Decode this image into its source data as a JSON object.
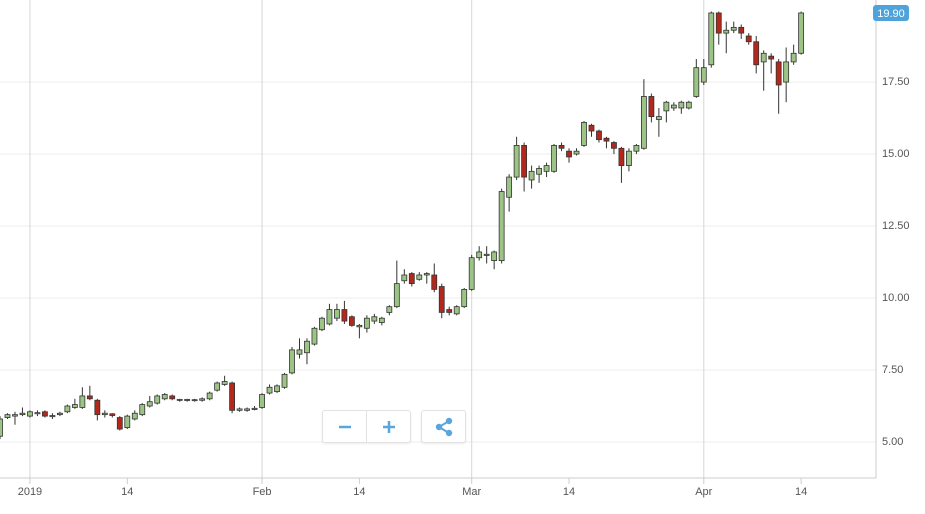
{
  "chart_data": {
    "type": "candlestick",
    "x": [
      "2018-12-28",
      "2018-12-29",
      "2018-12-30",
      "2018-12-31",
      "2019-01-01",
      "2019-01-02",
      "2019-01-03",
      "2019-01-04",
      "2019-01-05",
      "2019-01-06",
      "2019-01-07",
      "2019-01-08",
      "2019-01-09",
      "2019-01-10",
      "2019-01-11",
      "2019-01-12",
      "2019-01-13",
      "2019-01-14",
      "2019-01-15",
      "2019-01-16",
      "2019-01-17",
      "2019-01-18",
      "2019-01-19",
      "2019-01-20",
      "2019-01-21",
      "2019-01-22",
      "2019-01-23",
      "2019-01-24",
      "2019-01-25",
      "2019-01-26",
      "2019-01-27",
      "2019-01-28",
      "2019-01-29",
      "2019-01-30",
      "2019-01-31",
      "2019-02-01",
      "2019-02-02",
      "2019-02-03",
      "2019-02-04",
      "2019-02-05",
      "2019-02-06",
      "2019-02-07",
      "2019-02-08",
      "2019-02-09",
      "2019-02-10",
      "2019-02-11",
      "2019-02-12",
      "2019-02-13",
      "2019-02-14",
      "2019-02-15",
      "2019-02-16",
      "2019-02-17",
      "2019-02-18",
      "2019-02-19",
      "2019-02-20",
      "2019-02-21",
      "2019-02-22",
      "2019-02-23",
      "2019-02-24",
      "2019-02-25",
      "2019-02-26",
      "2019-02-27",
      "2019-02-28",
      "2019-03-01",
      "2019-03-02",
      "2019-03-03",
      "2019-03-04",
      "2019-03-05",
      "2019-03-06",
      "2019-03-07",
      "2019-03-08",
      "2019-03-09",
      "2019-03-10",
      "2019-03-11",
      "2019-03-12",
      "2019-03-13",
      "2019-03-14",
      "2019-03-15",
      "2019-03-16",
      "2019-03-17",
      "2019-03-18",
      "2019-03-19",
      "2019-03-20",
      "2019-03-21",
      "2019-03-22",
      "2019-03-23",
      "2019-03-24",
      "2019-03-25",
      "2019-03-26",
      "2019-03-27",
      "2019-03-28",
      "2019-03-29",
      "2019-03-30",
      "2019-03-31",
      "2019-04-01",
      "2019-04-02",
      "2019-04-03",
      "2019-04-04",
      "2019-04-05",
      "2019-04-06",
      "2019-04-07",
      "2019-04-08",
      "2019-04-09",
      "2019-04-10",
      "2019-04-11",
      "2019-04-12",
      "2019-04-13",
      "2019-04-14"
    ],
    "open": [
      5.2,
      5.85,
      5.9,
      5.95,
      5.9,
      5.98,
      6.05,
      5.88,
      5.95,
      6.05,
      6.2,
      6.2,
      6.6,
      6.45,
      5.95,
      5.98,
      5.85,
      5.5,
      5.8,
      5.95,
      6.25,
      6.35,
      6.5,
      6.6,
      6.45,
      6.44,
      6.44,
      6.45,
      6.5,
      6.8,
      7.0,
      7.05,
      6.1,
      6.1,
      6.13,
      6.2,
      6.7,
      6.75,
      6.9,
      7.4,
      8.05,
      8.1,
      8.4,
      8.9,
      9.1,
      9.3,
      9.6,
      9.35,
      9.0,
      8.95,
      9.2,
      9.15,
      9.5,
      9.7,
      10.6,
      10.85,
      10.65,
      10.8,
      10.8,
      10.4,
      9.6,
      9.45,
      9.7,
      10.3,
      11.4,
      11.48,
      11.3,
      11.3,
      13.5,
      14.2,
      15.3,
      14.1,
      14.3,
      14.4,
      14.4,
      15.3,
      15.1,
      15.0,
      15.3,
      16.0,
      15.8,
      15.55,
      15.4,
      15.2,
      14.6,
      15.1,
      15.2,
      17.0,
      16.2,
      16.5,
      16.6,
      16.6,
      16.6,
      17.0,
      17.5,
      18.1,
      19.9,
      19.2,
      19.3,
      19.4,
      19.1,
      18.9,
      18.2,
      18.4,
      18.2,
      17.5,
      18.2,
      18.5
    ],
    "high": [
      5.9,
      6.0,
      6.05,
      6.2,
      6.1,
      6.1,
      6.1,
      6.0,
      6.05,
      6.3,
      6.5,
      6.9,
      6.95,
      6.5,
      6.1,
      6.0,
      5.9,
      5.95,
      6.1,
      6.35,
      6.6,
      6.65,
      6.7,
      6.65,
      6.5,
      6.5,
      6.5,
      6.55,
      6.75,
      7.1,
      7.3,
      7.1,
      6.2,
      6.2,
      6.25,
      6.7,
      7.0,
      7.0,
      7.4,
      8.3,
      8.6,
      8.6,
      9.0,
      9.35,
      9.8,
      9.8,
      9.9,
      9.4,
      9.1,
      9.4,
      9.45,
      9.35,
      9.75,
      11.3,
      11.0,
      10.9,
      10.9,
      10.9,
      11.2,
      10.5,
      9.7,
      9.75,
      10.35,
      11.5,
      11.8,
      11.8,
      11.65,
      13.8,
      14.3,
      15.6,
      15.4,
      14.6,
      14.6,
      14.7,
      15.35,
      15.4,
      15.2,
      15.2,
      16.15,
      16.05,
      15.85,
      15.6,
      15.45,
      15.25,
      15.2,
      15.35,
      17.6,
      17.1,
      16.6,
      16.85,
      16.8,
      16.85,
      16.85,
      18.3,
      18.3,
      19.95,
      19.95,
      19.6,
      19.6,
      19.5,
      19.2,
      19.1,
      18.6,
      18.5,
      18.3,
      18.7,
      18.8,
      19.95
    ],
    "low": [
      5.1,
      5.8,
      5.6,
      5.9,
      5.85,
      5.9,
      5.85,
      5.8,
      5.9,
      6.0,
      6.15,
      6.15,
      6.45,
      5.75,
      5.85,
      5.85,
      5.4,
      5.45,
      5.75,
      5.9,
      6.2,
      6.3,
      6.45,
      6.45,
      6.4,
      6.4,
      6.4,
      6.4,
      6.45,
      6.75,
      6.95,
      6.0,
      6.05,
      6.05,
      6.1,
      6.15,
      6.65,
      6.7,
      6.85,
      7.35,
      7.9,
      7.7,
      8.35,
      8.85,
      9.05,
      9.2,
      9.1,
      9.0,
      8.6,
      8.8,
      9.1,
      9.05,
      9.4,
      9.65,
      10.5,
      10.4,
      10.6,
      10.5,
      10.2,
      9.3,
      9.4,
      9.4,
      9.65,
      10.25,
      11.3,
      11.2,
      11.0,
      11.2,
      13.0,
      14.1,
      13.7,
      13.8,
      14.0,
      14.2,
      14.35,
      15.1,
      14.7,
      14.95,
      15.25,
      15.6,
      15.4,
      15.2,
      15.0,
      14.0,
      14.4,
      15.0,
      15.15,
      16.1,
      15.6,
      16.1,
      16.5,
      16.4,
      16.55,
      16.95,
      17.4,
      18.0,
      18.8,
      18.5,
      19.2,
      19.0,
      18.8,
      17.8,
      17.2,
      17.8,
      16.4,
      16.8,
      18.1,
      18.45
    ],
    "close": [
      5.8,
      5.95,
      5.95,
      6.0,
      6.05,
      6.02,
      5.9,
      5.92,
      6.0,
      6.25,
      6.3,
      6.6,
      6.5,
      5.95,
      6.0,
      5.92,
      5.45,
      5.9,
      6.0,
      6.3,
      6.4,
      6.6,
      6.65,
      6.5,
      6.48,
      6.48,
      6.47,
      6.5,
      6.7,
      7.05,
      7.1,
      6.1,
      6.15,
      6.15,
      6.17,
      6.65,
      6.9,
      6.95,
      7.35,
      8.2,
      8.2,
      8.5,
      8.95,
      9.3,
      9.6,
      9.6,
      9.2,
      9.05,
      9.05,
      9.3,
      9.35,
      9.3,
      9.7,
      10.5,
      10.8,
      10.5,
      10.8,
      10.85,
      10.3,
      9.5,
      9.5,
      9.7,
      10.3,
      11.4,
      11.6,
      11.52,
      11.6,
      13.7,
      14.2,
      15.3,
      14.2,
      14.4,
      14.5,
      14.6,
      15.3,
      15.2,
      14.9,
      15.1,
      16.1,
      15.8,
      15.5,
      15.45,
      15.2,
      14.6,
      15.1,
      15.3,
      17.0,
      16.3,
      16.3,
      16.8,
      16.7,
      16.8,
      16.8,
      18.0,
      18.0,
      19.9,
      19.2,
      19.3,
      19.4,
      19.2,
      18.9,
      18.1,
      18.5,
      18.3,
      17.4,
      18.2,
      18.5,
      19.9
    ],
    "last_label": "19.90",
    "up_color": "#9cc585",
    "down_color": "#b3281c",
    "badge_color": "#4ea3da",
    "xlim": [
      "2018-12-28",
      "2019-04-24"
    ],
    "xticks": [
      {
        "value": "2019-01-01",
        "label": "2019"
      },
      {
        "value": "2019-01-14",
        "label": "14"
      },
      {
        "value": "2019-02-01",
        "label": "Feb"
      },
      {
        "value": "2019-02-14",
        "label": "14"
      },
      {
        "value": "2019-03-01",
        "label": "Mar"
      },
      {
        "value": "2019-03-14",
        "label": "14"
      },
      {
        "value": "2019-04-01",
        "label": "Apr"
      },
      {
        "value": "2019-04-14",
        "label": "14"
      }
    ],
    "ylim": [
      3.75,
      20.35
    ],
    "yticks": [
      {
        "value": 5,
        "label": "5.00"
      },
      {
        "value": 7.5,
        "label": "7.50"
      },
      {
        "value": 10,
        "label": "10.00"
      },
      {
        "value": 12.5,
        "label": "12.50"
      },
      {
        "value": 15,
        "label": "15.00"
      },
      {
        "value": 17.5,
        "label": "17.50"
      }
    ],
    "grid": true
  }
}
